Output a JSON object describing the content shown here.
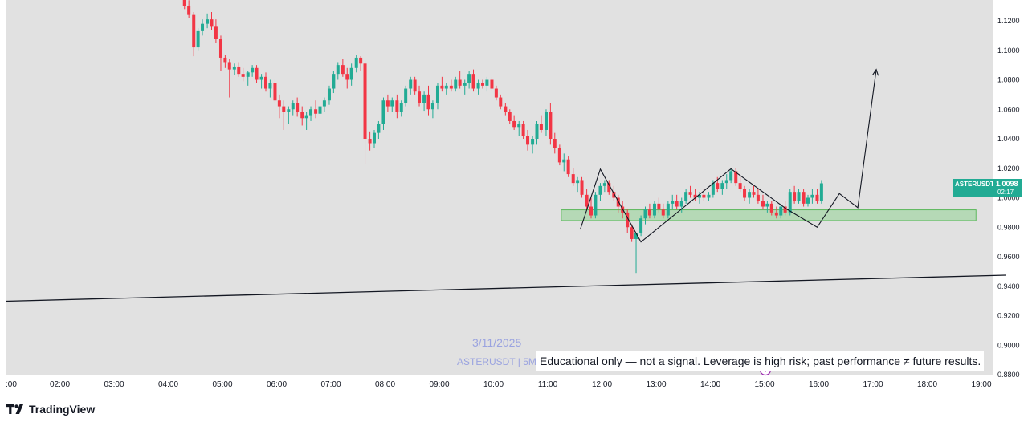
{
  "chart_data": {
    "type": "candlestick",
    "symbol": "ASTERUSDT",
    "date": "3/11/2025",
    "interval": "5M",
    "watermark": "ASTERUSDT | 5M",
    "last_price": "1.0098",
    "countdown": "02:17",
    "y_ticks": [
      "1.1200",
      "1.1000",
      "1.0800",
      "1.0600",
      "1.0400",
      "1.0200",
      "1.0000",
      "0.9800",
      "0.9600",
      "0.9400",
      "0.9200",
      "0.9000",
      "0.8800"
    ],
    "x_ticks": [
      ":00",
      "02:00",
      "03:00",
      "04:00",
      "05:00",
      "06:00",
      "07:00",
      "08:00",
      "09:00",
      "10:00",
      "11:00",
      "12:00",
      "13:00",
      "14:00",
      "15:00",
      "16:00",
      "17:00",
      "18:00",
      "19:00"
    ],
    "ylim": [
      0.878,
      1.133
    ],
    "candles": [
      [
        3.3,
        1.136,
        1.14,
        1.128,
        1.13
      ],
      [
        3.38,
        1.13,
        1.134,
        1.122,
        1.124
      ],
      [
        3.47,
        1.124,
        1.126,
        1.096,
        1.102
      ],
      [
        3.55,
        1.102,
        1.115,
        1.1,
        1.113
      ],
      [
        3.63,
        1.113,
        1.121,
        1.11,
        1.118
      ],
      [
        3.72,
        1.118,
        1.125,
        1.115,
        1.121
      ],
      [
        3.8,
        1.121,
        1.126,
        1.114,
        1.116
      ],
      [
        3.88,
        1.116,
        1.121,
        1.105,
        1.108
      ],
      [
        3.97,
        1.108,
        1.11,
        1.086,
        1.095
      ],
      [
        4.05,
        1.095,
        1.097,
        1.088,
        1.092
      ],
      [
        4.13,
        1.092,
        1.094,
        1.068,
        1.087
      ],
      [
        4.22,
        1.087,
        1.091,
        1.083,
        1.089
      ],
      [
        4.3,
        1.089,
        1.092,
        1.082,
        1.084
      ],
      [
        4.38,
        1.084,
        1.088,
        1.079,
        1.082
      ],
      [
        4.47,
        1.082,
        1.086,
        1.076,
        1.085
      ],
      [
        4.55,
        1.085,
        1.09,
        1.082,
        1.088
      ],
      [
        4.63,
        1.088,
        1.09,
        1.078,
        1.08
      ],
      [
        4.72,
        1.08,
        1.084,
        1.074,
        1.082
      ],
      [
        4.8,
        1.082,
        1.085,
        1.072,
        1.074
      ],
      [
        4.88,
        1.074,
        1.08,
        1.068,
        1.078
      ],
      [
        4.97,
        1.078,
        1.08,
        1.064,
        1.066
      ],
      [
        5.05,
        1.066,
        1.07,
        1.054,
        1.062
      ],
      [
        5.13,
        1.062,
        1.066,
        1.046,
        1.058
      ],
      [
        5.22,
        1.058,
        1.062,
        1.05,
        1.06
      ],
      [
        5.3,
        1.06,
        1.066,
        1.056,
        1.064
      ],
      [
        5.38,
        1.064,
        1.068,
        1.055,
        1.058
      ],
      [
        5.47,
        1.058,
        1.062,
        1.049,
        1.054
      ],
      [
        5.55,
        1.054,
        1.058,
        1.046,
        1.056
      ],
      [
        5.63,
        1.056,
        1.062,
        1.052,
        1.06
      ],
      [
        5.72,
        1.06,
        1.066,
        1.054,
        1.057
      ],
      [
        5.8,
        1.057,
        1.064,
        1.053,
        1.062
      ],
      [
        5.88,
        1.062,
        1.068,
        1.058,
        1.066
      ],
      [
        5.97,
        1.066,
        1.076,
        1.063,
        1.074
      ],
      [
        6.05,
        1.074,
        1.086,
        1.071,
        1.084
      ],
      [
        6.13,
        1.084,
        1.092,
        1.08,
        1.09
      ],
      [
        6.22,
        1.09,
        1.094,
        1.082,
        1.084
      ],
      [
        6.3,
        1.084,
        1.088,
        1.074,
        1.08
      ],
      [
        6.38,
        1.08,
        1.091,
        1.076,
        1.088
      ],
      [
        6.47,
        1.088,
        1.097,
        1.085,
        1.095
      ],
      [
        6.55,
        1.095,
        1.096,
        1.086,
        1.091
      ],
      [
        6.63,
        1.091,
        1.093,
        1.023,
        1.04
      ],
      [
        6.72,
        1.04,
        1.045,
        1.032,
        1.037
      ],
      [
        6.8,
        1.037,
        1.046,
        1.034,
        1.044
      ],
      [
        6.88,
        1.044,
        1.052,
        1.04,
        1.05
      ],
      [
        6.97,
        1.05,
        1.068,
        1.046,
        1.066
      ],
      [
        7.05,
        1.066,
        1.07,
        1.058,
        1.062
      ],
      [
        7.13,
        1.062,
        1.068,
        1.058,
        1.066
      ],
      [
        7.22,
        1.066,
        1.07,
        1.054,
        1.058
      ],
      [
        7.3,
        1.058,
        1.066,
        1.055,
        1.064
      ],
      [
        7.38,
        1.064,
        1.076,
        1.062,
        1.074
      ],
      [
        7.47,
        1.074,
        1.082,
        1.07,
        1.08
      ],
      [
        7.55,
        1.08,
        1.082,
        1.07,
        1.072
      ],
      [
        7.63,
        1.072,
        1.076,
        1.062,
        1.064
      ],
      [
        7.72,
        1.064,
        1.072,
        1.059,
        1.07
      ],
      [
        7.8,
        1.07,
        1.076,
        1.056,
        1.06
      ],
      [
        7.88,
        1.06,
        1.066,
        1.054,
        1.064
      ],
      [
        7.97,
        1.064,
        1.078,
        1.06,
        1.076
      ],
      [
        8.05,
        1.076,
        1.082,
        1.072,
        1.074
      ],
      [
        8.13,
        1.074,
        1.078,
        1.07,
        1.076
      ],
      [
        8.22,
        1.076,
        1.08,
        1.072,
        1.074
      ],
      [
        8.3,
        1.074,
        1.082,
        1.072,
        1.08
      ],
      [
        8.38,
        1.08,
        1.086,
        1.074,
        1.076
      ],
      [
        8.47,
        1.076,
        1.08,
        1.07,
        1.078
      ],
      [
        8.55,
        1.078,
        1.086,
        1.074,
        1.084
      ],
      [
        8.63,
        1.084,
        1.087,
        1.072,
        1.074
      ],
      [
        8.72,
        1.074,
        1.08,
        1.07,
        1.078
      ],
      [
        8.8,
        1.078,
        1.08,
        1.074,
        1.076
      ],
      [
        8.88,
        1.076,
        1.082,
        1.072,
        1.08
      ],
      [
        8.97,
        1.08,
        1.082,
        1.072,
        1.074
      ],
      [
        9.05,
        1.074,
        1.076,
        1.066,
        1.068
      ],
      [
        9.13,
        1.068,
        1.07,
        1.06,
        1.062
      ],
      [
        9.22,
        1.062,
        1.064,
        1.056,
        1.058
      ],
      [
        9.3,
        1.058,
        1.06,
        1.05,
        1.052
      ],
      [
        9.38,
        1.052,
        1.056,
        1.046,
        1.048
      ],
      [
        9.47,
        1.048,
        1.052,
        1.042,
        1.05
      ],
      [
        9.55,
        1.05,
        1.052,
        1.04,
        1.042
      ],
      [
        9.63,
        1.042,
        1.046,
        1.032,
        1.036
      ],
      [
        9.72,
        1.036,
        1.042,
        1.03,
        1.04
      ],
      [
        9.8,
        1.04,
        1.052,
        1.036,
        1.05
      ],
      [
        9.88,
        1.05,
        1.056,
        1.044,
        1.046
      ],
      [
        9.97,
        1.046,
        1.06,
        1.042,
        1.058
      ],
      [
        10.05,
        1.058,
        1.064,
        1.036,
        1.04
      ],
      [
        10.13,
        1.04,
        1.044,
        1.03,
        1.034
      ],
      [
        10.22,
        1.034,
        1.036,
        1.022,
        1.024
      ],
      [
        10.3,
        1.024,
        1.03,
        1.018,
        1.026
      ],
      [
        10.38,
        1.026,
        1.028,
        1.014,
        1.016
      ],
      [
        10.47,
        1.016,
        1.02,
        1.008,
        1.01
      ],
      [
        10.55,
        1.01,
        1.014,
        1.004,
        1.012
      ],
      [
        10.63,
        1.012,
        1.014,
        1.0,
        1.002
      ],
      [
        10.72,
        1.002,
        1.006,
        0.992,
        0.994
      ],
      [
        10.8,
        0.994,
        1.0,
        0.986,
        0.988
      ],
      [
        10.88,
        0.988,
        1.004,
        0.986,
        1.002
      ],
      [
        10.97,
        1.002,
        1.01,
        0.998,
        1.008
      ],
      [
        11.05,
        1.008,
        1.012,
        1.004,
        1.01
      ],
      [
        11.13,
        1.01,
        1.012,
        1.002,
        1.004
      ],
      [
        11.22,
        1.004,
        1.008,
        0.998,
        1.0
      ],
      [
        11.3,
        1.0,
        1.002,
        0.99,
        0.994
      ],
      [
        11.38,
        0.994,
        0.998,
        0.986,
        0.99
      ],
      [
        11.47,
        0.99,
        0.992,
        0.976,
        0.98
      ],
      [
        11.55,
        0.98,
        0.982,
        0.97,
        0.972
      ],
      [
        11.63,
        0.972,
        0.976,
        0.949,
        0.976
      ],
      [
        11.72,
        0.976,
        0.988,
        0.974,
        0.986
      ],
      [
        11.8,
        0.986,
        0.994,
        0.982,
        0.992
      ],
      [
        11.88,
        0.992,
        0.996,
        0.986,
        0.988
      ],
      [
        11.97,
        0.988,
        0.998,
        0.986,
        0.996
      ],
      [
        12.05,
        0.996,
        1.0,
        0.99,
        0.992
      ],
      [
        12.13,
        0.992,
        0.996,
        0.986,
        0.988
      ],
      [
        12.22,
        0.988,
        0.998,
        0.986,
        0.996
      ],
      [
        12.3,
        0.996,
        1.002,
        0.992,
        0.998
      ],
      [
        12.38,
        0.998,
        1.002,
        0.992,
        0.994
      ],
      [
        12.47,
        0.994,
        1.0,
        0.99,
        0.998
      ],
      [
        12.55,
        0.998,
        1.006,
        0.996,
        1.004
      ],
      [
        12.63,
        1.004,
        1.008,
        1.0,
        1.002
      ],
      [
        12.72,
        1.002,
        1.006,
        0.998,
        1.0
      ],
      [
        12.8,
        1.0,
        1.004,
        0.996,
        1.002
      ],
      [
        12.88,
        1.002,
        1.006,
        0.998,
        1.0
      ],
      [
        12.97,
        1.0,
        1.004,
        0.998,
        1.002
      ],
      [
        13.05,
        1.002,
        1.012,
        1.0,
        1.01
      ],
      [
        13.13,
        1.01,
        1.014,
        1.004,
        1.006
      ],
      [
        13.22,
        1.006,
        1.012,
        1.002,
        1.01
      ],
      [
        13.3,
        1.01,
        1.016,
        1.006,
        1.012
      ],
      [
        13.38,
        1.012,
        1.02,
        1.01,
        1.018
      ],
      [
        13.47,
        1.018,
        1.02,
        1.008,
        1.01
      ],
      [
        13.55,
        1.01,
        1.014,
        1.004,
        1.006
      ],
      [
        13.63,
        1.006,
        1.008,
        0.998,
        1.0
      ],
      [
        13.72,
        1.0,
        1.006,
        0.996,
        1.004
      ],
      [
        13.8,
        1.004,
        1.008,
        1.0,
        1.002
      ],
      [
        13.88,
        1.002,
        1.006,
        0.996,
        0.998
      ],
      [
        13.97,
        0.998,
        1.002,
        0.992,
        0.994
      ],
      [
        14.05,
        0.994,
        0.998,
        0.99,
        0.996
      ],
      [
        14.13,
        0.996,
        0.998,
        0.988,
        0.99
      ],
      [
        14.22,
        0.99,
        0.994,
        0.986,
        0.988
      ],
      [
        14.3,
        0.988,
        0.996,
        0.986,
        0.994
      ],
      [
        14.38,
        0.994,
        0.998,
        0.988,
        0.99
      ],
      [
        14.47,
        0.99,
        1.006,
        0.988,
        1.004
      ],
      [
        14.55,
        1.004,
        1.008,
        0.996,
        0.998
      ],
      [
        14.63,
        0.998,
        1.006,
        0.996,
        1.004
      ],
      [
        14.72,
        1.004,
        1.006,
        0.994,
        0.996
      ],
      [
        14.8,
        0.996,
        1.002,
        0.994,
        1.0
      ],
      [
        14.88,
        1.0,
        1.006,
        0.996,
        1.002
      ],
      [
        14.97,
        1.002,
        1.006,
        0.996,
        0.998
      ],
      [
        15.05,
        0.998,
        1.012,
        0.996,
        1.0098
      ]
    ],
    "support_zone": {
      "x_from": 10.25,
      "x_to": 17.9,
      "y_low": 0.9845,
      "y_high": 0.9918
    },
    "trendline": {
      "x1": 0.0,
      "y1": 0.9298,
      "x2": 18.45,
      "y2": 0.9475
    },
    "projection_path": [
      [
        10.6,
        0.9785
      ],
      [
        10.97,
        1.0194
      ],
      [
        11.72,
        0.97
      ],
      [
        13.38,
        1.0196
      ],
      [
        14.4,
        0.9925
      ],
      [
        14.97,
        0.98
      ],
      [
        15.38,
        1.0028
      ],
      [
        15.72,
        0.9933
      ],
      [
        16.06,
        1.087
      ]
    ],
    "colors": {
      "up": "#22ab94",
      "down": "#f23645",
      "zone": "#a5d6a7",
      "zone_border": "#5cb85c",
      "line": "#131722",
      "bg": "#e1e1e1",
      "accent": "#22ab94"
    }
  },
  "disclaimer": "Educational only — not a signal. Leverage is high risk; past performance ≠ future results.",
  "brand": "TradingView"
}
